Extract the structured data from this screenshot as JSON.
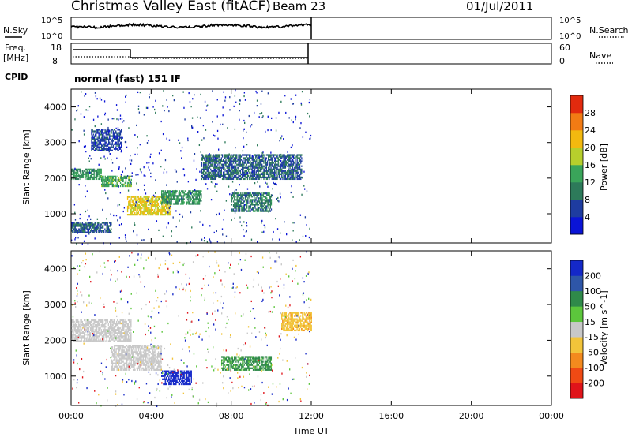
{
  "header": {
    "title": "Christmas Valley East (fitACF)",
    "beam": "Beam 23",
    "date": "01/Jul/2011"
  },
  "noise_panel": {
    "left_label": "N.Sky",
    "right_label": "N.Search",
    "ticks": [
      "10^5",
      "10^0"
    ]
  },
  "freq_panel": {
    "left_label_line1": "Freq.",
    "left_label_line2": "[MHz]",
    "left_ticks": [
      "18",
      "8"
    ],
    "right_label": "Nave",
    "right_ticks": [
      "60",
      "0"
    ]
  },
  "cpid": {
    "label": "CPID",
    "value": "normal (fast) 151 IF"
  },
  "axes": {
    "ylabel": "Slant Range [km]",
    "yticks": [
      "1000",
      "2000",
      "3000",
      "4000"
    ],
    "xticks": [
      "00:00",
      "04:00",
      "08:00",
      "12:00",
      "16:00",
      "20:00",
      "00:00"
    ],
    "xlabel": "Time UT"
  },
  "power_colorbar": {
    "label": "Power [dB]",
    "ticks": [
      "4",
      "8",
      "12",
      "16",
      "20",
      "24",
      "28"
    ],
    "colors": [
      "#0a14d6",
      "#1e3ca0",
      "#2d7a5a",
      "#3aa55a",
      "#b7cf2c",
      "#f3b90f",
      "#f27b14",
      "#e22a0e"
    ]
  },
  "velocity_colorbar": {
    "label": "Velocity [m s^-1]",
    "ticks": [
      "200",
      "100",
      "50",
      "15",
      "-15",
      "-50",
      "-100",
      "-200"
    ],
    "colors": [
      "#1428c8",
      "#2e56a8",
      "#2f8a4a",
      "#5cc63c",
      "#c8c8c8",
      "#f2c43a",
      "#f38a1e",
      "#f04a14",
      "#e0141a"
    ]
  },
  "chart_data": {
    "type": "heatmap",
    "x_range_hours": [
      0,
      24
    ],
    "y_range_km": [
      180,
      4500
    ],
    "data_extent_hours": [
      0,
      12
    ],
    "power_regions": [
      {
        "t": [
          0.0,
          1.5
        ],
        "r": [
          2000,
          2300
        ],
        "db": 12
      },
      {
        "t": [
          1.5,
          3.0
        ],
        "r": [
          1800,
          2100
        ],
        "db": 14
      },
      {
        "t": [
          2.8,
          5.0
        ],
        "r": [
          1000,
          1500
        ],
        "db": 20
      },
      {
        "t": [
          4.5,
          6.5
        ],
        "r": [
          1300,
          1700
        ],
        "db": 12
      },
      {
        "t": [
          8.0,
          10.0
        ],
        "r": [
          1100,
          1600
        ],
        "db": 10
      },
      {
        "t": [
          6.5,
          11.5
        ],
        "r": [
          2000,
          2700
        ],
        "db": 8
      },
      {
        "t": [
          0.0,
          2.0
        ],
        "r": [
          500,
          800
        ],
        "db": 8
      },
      {
        "t": [
          1.0,
          2.5
        ],
        "r": [
          2800,
          3400
        ],
        "db": 6
      }
    ],
    "velocity_regions": [
      {
        "t": [
          0.0,
          3.0
        ],
        "r": [
          2000,
          2600
        ],
        "v": 0
      },
      {
        "t": [
          2.0,
          4.5
        ],
        "r": [
          1200,
          1900
        ],
        "v": 0
      },
      {
        "t": [
          4.5,
          6.0
        ],
        "r": [
          800,
          1200
        ],
        "v": 220
      },
      {
        "t": [
          7.5,
          10.0
        ],
        "r": [
          1200,
          1600
        ],
        "v": 60
      },
      {
        "t": [
          10.5,
          12.0
        ],
        "r": [
          2300,
          2800
        ],
        "v": -40
      }
    ]
  }
}
